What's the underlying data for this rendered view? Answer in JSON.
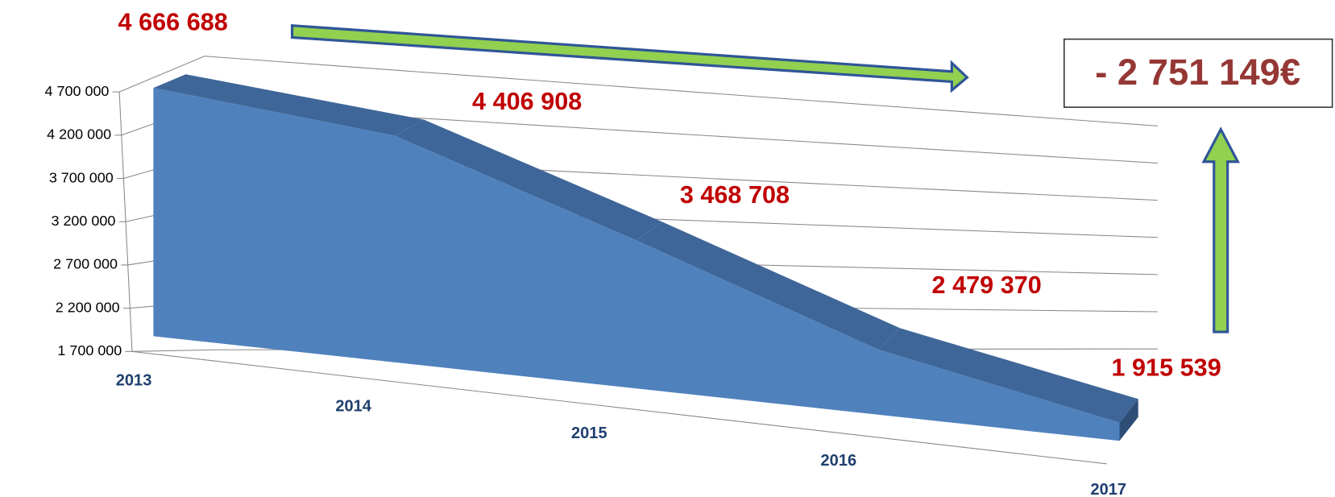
{
  "chart_data": {
    "type": "area3d",
    "categories": [
      "2013",
      "2014",
      "2015",
      "2016",
      "2017"
    ],
    "values": [
      4666688,
      4406908,
      3468708,
      2479370,
      1915539
    ],
    "value_labels": [
      "4 666 688",
      "4 406 908",
      "3 468 708",
      "2 479 370",
      "1 915 539"
    ],
    "color": "#4f81bd",
    "ylim": [
      1700000,
      4700000
    ],
    "yticks": [
      {
        "value": 1700000,
        "label": "1 700 000"
      },
      {
        "value": 2200000,
        "label": "2 200 000"
      },
      {
        "value": 2700000,
        "label": "2 700 000"
      },
      {
        "value": 3200000,
        "label": "3 200 000"
      },
      {
        "value": 3700000,
        "label": "3 700 000"
      },
      {
        "value": 4200000,
        "label": "4 200 000"
      },
      {
        "value": 4700000,
        "label": "4 700 000"
      }
    ],
    "grid": true,
    "annotation": "- 2 751 149€"
  }
}
